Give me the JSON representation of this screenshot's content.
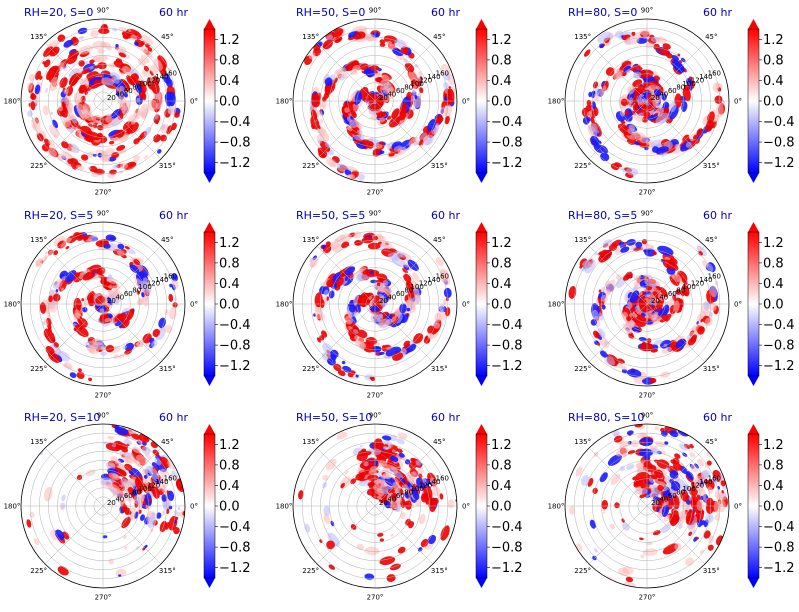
{
  "chart_data": {
    "type": "heatmap",
    "projection": "polar",
    "layout": {
      "rows": 3,
      "cols": 3
    },
    "theta_tick_labels": [
      "0°",
      "45°",
      "90°",
      "135°",
      "180°",
      "225°",
      "270°",
      "315°"
    ],
    "r_tick_labels": [
      "20",
      "40",
      "60",
      "80",
      "100",
      "120",
      "140",
      "160"
    ],
    "rlim": [
      0,
      180
    ],
    "grid": true,
    "colormap": {
      "name": "bwr",
      "low_color": "#0000ff",
      "mid_color": "#ffffff",
      "high_color": "#ff0000",
      "vmin": -1.4,
      "vmax": 1.4,
      "extend": "both",
      "tick_labels": [
        "1.2",
        "0.8",
        "0.4",
        "0.0",
        "−0.4",
        "−0.8",
        "−1.2"
      ]
    },
    "panels": [
      {
        "title": "RH=20, S=0",
        "time_label": "60 hr",
        "pattern": "ring-cells",
        "coverage": 0.85,
        "inner_r": 10,
        "outer_r": 180,
        "sector_center_deg": 0,
        "sector_width_deg": 360,
        "neg_fraction": 0.15
      },
      {
        "title": "RH=50, S=0",
        "time_label": "60 hr",
        "pattern": "spiral",
        "coverage": 0.8,
        "inner_r": 5,
        "outer_r": 175,
        "sector_center_deg": 0,
        "sector_width_deg": 360,
        "neg_fraction": 0.3
      },
      {
        "title": "RH=80, S=0",
        "time_label": "60 hr",
        "pattern": "spiral-core",
        "coverage": 0.9,
        "inner_r": 0,
        "outer_r": 170,
        "sector_center_deg": 0,
        "sector_width_deg": 360,
        "neg_fraction": 0.35
      },
      {
        "title": "RH=20, S=5",
        "time_label": "60 hr",
        "pattern": "spiral",
        "coverage": 0.6,
        "inner_r": 5,
        "outer_r": 170,
        "sector_center_deg": 0,
        "sector_width_deg": 360,
        "neg_fraction": 0.25
      },
      {
        "title": "RH=50, S=5",
        "time_label": "60 hr",
        "pattern": "spiral",
        "coverage": 0.75,
        "inner_r": 0,
        "outer_r": 170,
        "sector_center_deg": 0,
        "sector_width_deg": 360,
        "neg_fraction": 0.3
      },
      {
        "title": "RH=80, S=5",
        "time_label": "60 hr",
        "pattern": "spiral-core",
        "coverage": 0.85,
        "inner_r": 0,
        "outer_r": 170,
        "sector_center_deg": 20,
        "sector_width_deg": 360,
        "neg_fraction": 0.3
      },
      {
        "title": "RH=20, S=10",
        "time_label": "60 hr",
        "pattern": "sector",
        "coverage": 0.45,
        "inner_r": 40,
        "outer_r": 180,
        "sector_center_deg": 30,
        "sector_width_deg": 100,
        "neg_fraction": 0.3
      },
      {
        "title": "RH=50, S=10",
        "time_label": "60 hr",
        "pattern": "sector",
        "coverage": 0.55,
        "inner_r": 20,
        "outer_r": 140,
        "sector_center_deg": 55,
        "sector_width_deg": 110,
        "neg_fraction": 0.25
      },
      {
        "title": "RH=80, S=10",
        "time_label": "60 hr",
        "pattern": "sector",
        "coverage": 0.6,
        "inner_r": 20,
        "outer_r": 180,
        "sector_center_deg": 40,
        "sector_width_deg": 150,
        "neg_fraction": 0.25
      }
    ]
  }
}
